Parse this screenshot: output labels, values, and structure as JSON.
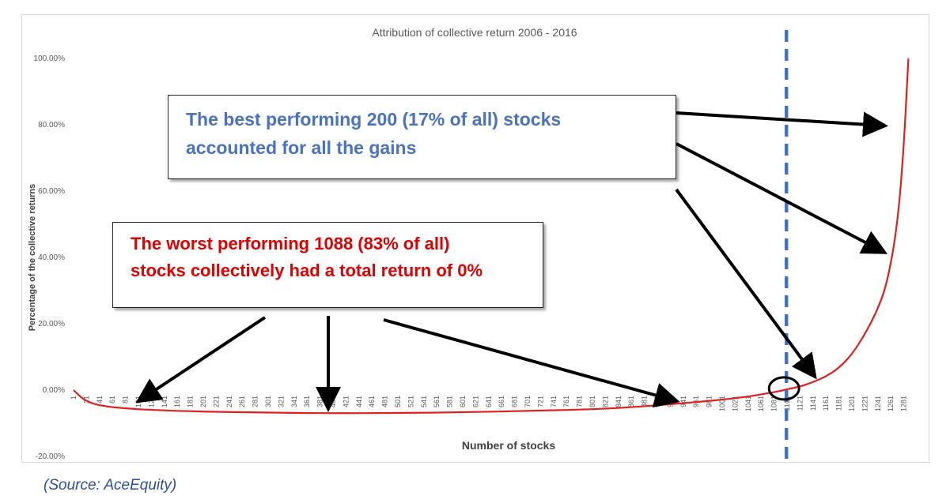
{
  "chart_data": {
    "type": "line",
    "title": "Attribution of collective return 2006 - 2016",
    "xlabel": "Number of stocks",
    "ylabel": "Percentage of the collective returns",
    "ylim": [
      -20,
      100
    ],
    "y_ticks": [
      "100.00%",
      "80.00%",
      "60.00%",
      "40.00%",
      "20.00%",
      "0.00%",
      "-20.00%"
    ],
    "x_ticks": [
      "1",
      "21",
      "41",
      "61",
      "81",
      "101",
      "121",
      "141",
      "161",
      "181",
      "201",
      "221",
      "241",
      "261",
      "281",
      "301",
      "321",
      "341",
      "361",
      "381",
      "401",
      "421",
      "441",
      "461",
      "481",
      "501",
      "521",
      "541",
      "561",
      "581",
      "601",
      "621",
      "641",
      "661",
      "681",
      "701",
      "721",
      "741",
      "761",
      "781",
      "801",
      "821",
      "841",
      "861",
      "881",
      "901",
      "921",
      "941",
      "961",
      "981",
      "1001",
      "1021",
      "1041",
      "1061",
      "1081",
      "1101",
      "1121",
      "1141",
      "1161",
      "1181",
      "1201",
      "1221",
      "1241",
      "1261",
      "1281"
    ],
    "series": [
      {
        "color": "#e02020",
        "x": [
          1,
          20,
          50,
          81,
          120,
          200,
          300,
          400,
          500,
          600,
          700,
          800,
          850,
          900,
          950,
          1000,
          1040,
          1070,
          1090,
          1100,
          1120,
          1140,
          1160,
          1180,
          1200,
          1220,
          1240,
          1255,
          1270,
          1280,
          1288
        ],
        "values": [
          0,
          -3.5,
          -5.0,
          -5.5,
          -6.0,
          -6.5,
          -6.8,
          -7.0,
          -6.9,
          -6.7,
          -6.3,
          -5.8,
          -5.3,
          -4.6,
          -3.8,
          -2.9,
          -2.0,
          -1.0,
          -0.3,
          0.2,
          1.0,
          2.3,
          4.0,
          6.5,
          10.5,
          16.5,
          24.0,
          32.0,
          48.0,
          70.0,
          100.0
        ]
      }
    ],
    "marker_x": 1100,
    "marker_color": "#4472c4",
    "grid": false
  },
  "callouts": {
    "best_line1": "The best performing 200 (17% of all) stocks",
    "best_line2": "accounted for all the gains",
    "worst_line1": "The worst performing 1088 (83% of all)",
    "worst_line2": "stocks collectively had a total return of 0%",
    "best_color": "#4a72c4",
    "worst_color": "#e00000"
  },
  "source": "(Source: AceEquity)"
}
